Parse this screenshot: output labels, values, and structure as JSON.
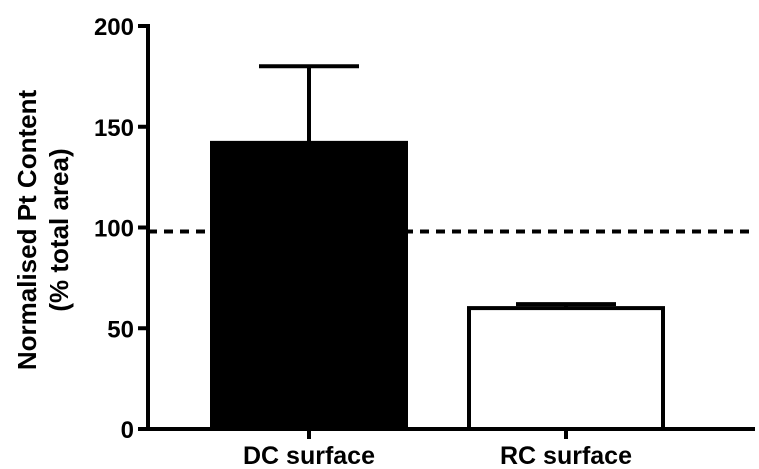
{
  "chart_data": {
    "type": "bar",
    "title": "",
    "xlabel": "",
    "ylabel": "Normalised Pt Content",
    "ylabel_line2": "(% total area)",
    "categories": [
      "DC surface",
      "RC surface"
    ],
    "values": [
      142,
      60
    ],
    "error_upper": [
      38,
      2
    ],
    "bar_fill_colors": [
      "#000000",
      "#ffffff"
    ],
    "bar_stroke_color": "#000000",
    "ylim": [
      0,
      200
    ],
    "yticks": [
      0,
      50,
      100,
      150,
      200
    ],
    "ytick_labels": [
      "0",
      "50",
      "100",
      "150",
      "200"
    ],
    "reference_line": {
      "y": 98,
      "style": "dashed",
      "color": "#000000"
    },
    "grid": false,
    "legend": "none"
  }
}
